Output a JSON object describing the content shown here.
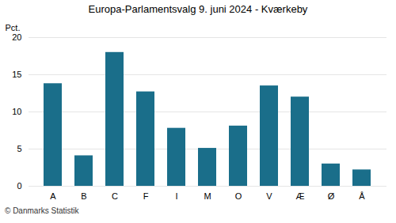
{
  "chart_data": {
    "type": "bar",
    "title": "Europa-Parlamentsvalg 9. juni 2024 - Kværkeby",
    "categories": [
      "A",
      "B",
      "C",
      "F",
      "I",
      "M",
      "O",
      "V",
      "Æ",
      "Ø",
      "Å"
    ],
    "values": [
      13.8,
      4.1,
      18.0,
      12.7,
      7.8,
      5.1,
      8.1,
      13.5,
      12.0,
      3.0,
      2.2
    ],
    "color": "#1a6e8a",
    "ylabel": "Pct.",
    "ylim": [
      0,
      20
    ],
    "yticks": [
      0,
      5,
      10,
      15,
      20
    ],
    "grid": true,
    "annotations": [
      {
        "text": "© Danmarks Statistik"
      }
    ]
  }
}
